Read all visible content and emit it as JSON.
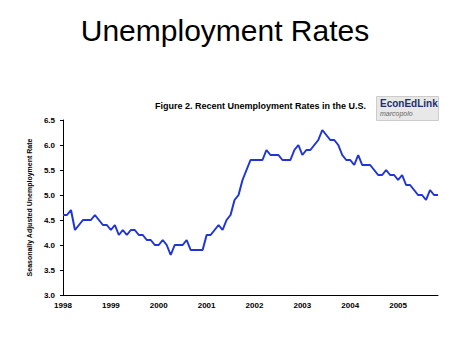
{
  "chart_data": {
    "type": "line",
    "title": "Unemployment Rates",
    "subtitle": "Figure 2. Recent Unemployment Rates in the U.S.",
    "y_label": "Seasonally Adjusted Unemployment Rate",
    "annotations": [
      "EconEdLink",
      "marcopolo"
    ],
    "categories": [
      "1998",
      null,
      null,
      null,
      null,
      null,
      null,
      null,
      null,
      null,
      null,
      null,
      "1999",
      null,
      null,
      null,
      null,
      null,
      null,
      null,
      null,
      null,
      null,
      null,
      "2000",
      null,
      null,
      null,
      null,
      null,
      null,
      null,
      null,
      null,
      null,
      null,
      "2001",
      null,
      null,
      null,
      null,
      null,
      null,
      null,
      null,
      null,
      null,
      null,
      "2002",
      null,
      null,
      null,
      null,
      null,
      null,
      null,
      null,
      null,
      null,
      null,
      "2003",
      null,
      null,
      null,
      null,
      null,
      null,
      null,
      null,
      null,
      null,
      null,
      "2004",
      null,
      null,
      null,
      null,
      null,
      null,
      null,
      null,
      null,
      null,
      null,
      "2005",
      null,
      null,
      null,
      null,
      null,
      null,
      null,
      null,
      null,
      null
    ],
    "values": [
      4.6,
      4.6,
      4.7,
      4.3,
      4.4,
      4.5,
      4.5,
      4.5,
      4.6,
      4.5,
      4.4,
      4.4,
      4.3,
      4.4,
      4.2,
      4.3,
      4.2,
      4.3,
      4.3,
      4.2,
      4.2,
      4.1,
      4.1,
      4.0,
      4.0,
      4.1,
      4.0,
      3.8,
      4.0,
      4.0,
      4.0,
      4.1,
      3.9,
      3.9,
      3.9,
      3.9,
      4.2,
      4.2,
      4.3,
      4.4,
      4.3,
      4.5,
      4.6,
      4.9,
      5.0,
      5.3,
      5.5,
      5.7,
      5.7,
      5.7,
      5.7,
      5.9,
      5.8,
      5.8,
      5.8,
      5.7,
      5.7,
      5.7,
      5.9,
      6.0,
      5.8,
      5.9,
      5.9,
      6.0,
      6.1,
      6.3,
      6.2,
      6.1,
      6.1,
      6.0,
      5.8,
      5.7,
      5.7,
      5.6,
      5.8,
      5.6,
      5.6,
      5.6,
      5.5,
      5.4,
      5.4,
      5.5,
      5.4,
      5.4,
      5.3,
      5.4,
      5.2,
      5.2,
      5.1,
      5.0,
      5.0,
      4.9,
      5.1,
      5.0,
      5.0
    ],
    "color": "#1f35d8",
    "ylim": [
      3,
      6.5
    ],
    "yticks": [
      {
        "value": 3,
        "label": "3.0"
      },
      3.5,
      {
        "value": 4,
        "label": "4.0"
      },
      4.5,
      {
        "value": 5,
        "label": "5.0"
      },
      5.5,
      {
        "value": 6,
        "label": "6.0"
      },
      6.5
    ],
    "grid": false
  }
}
